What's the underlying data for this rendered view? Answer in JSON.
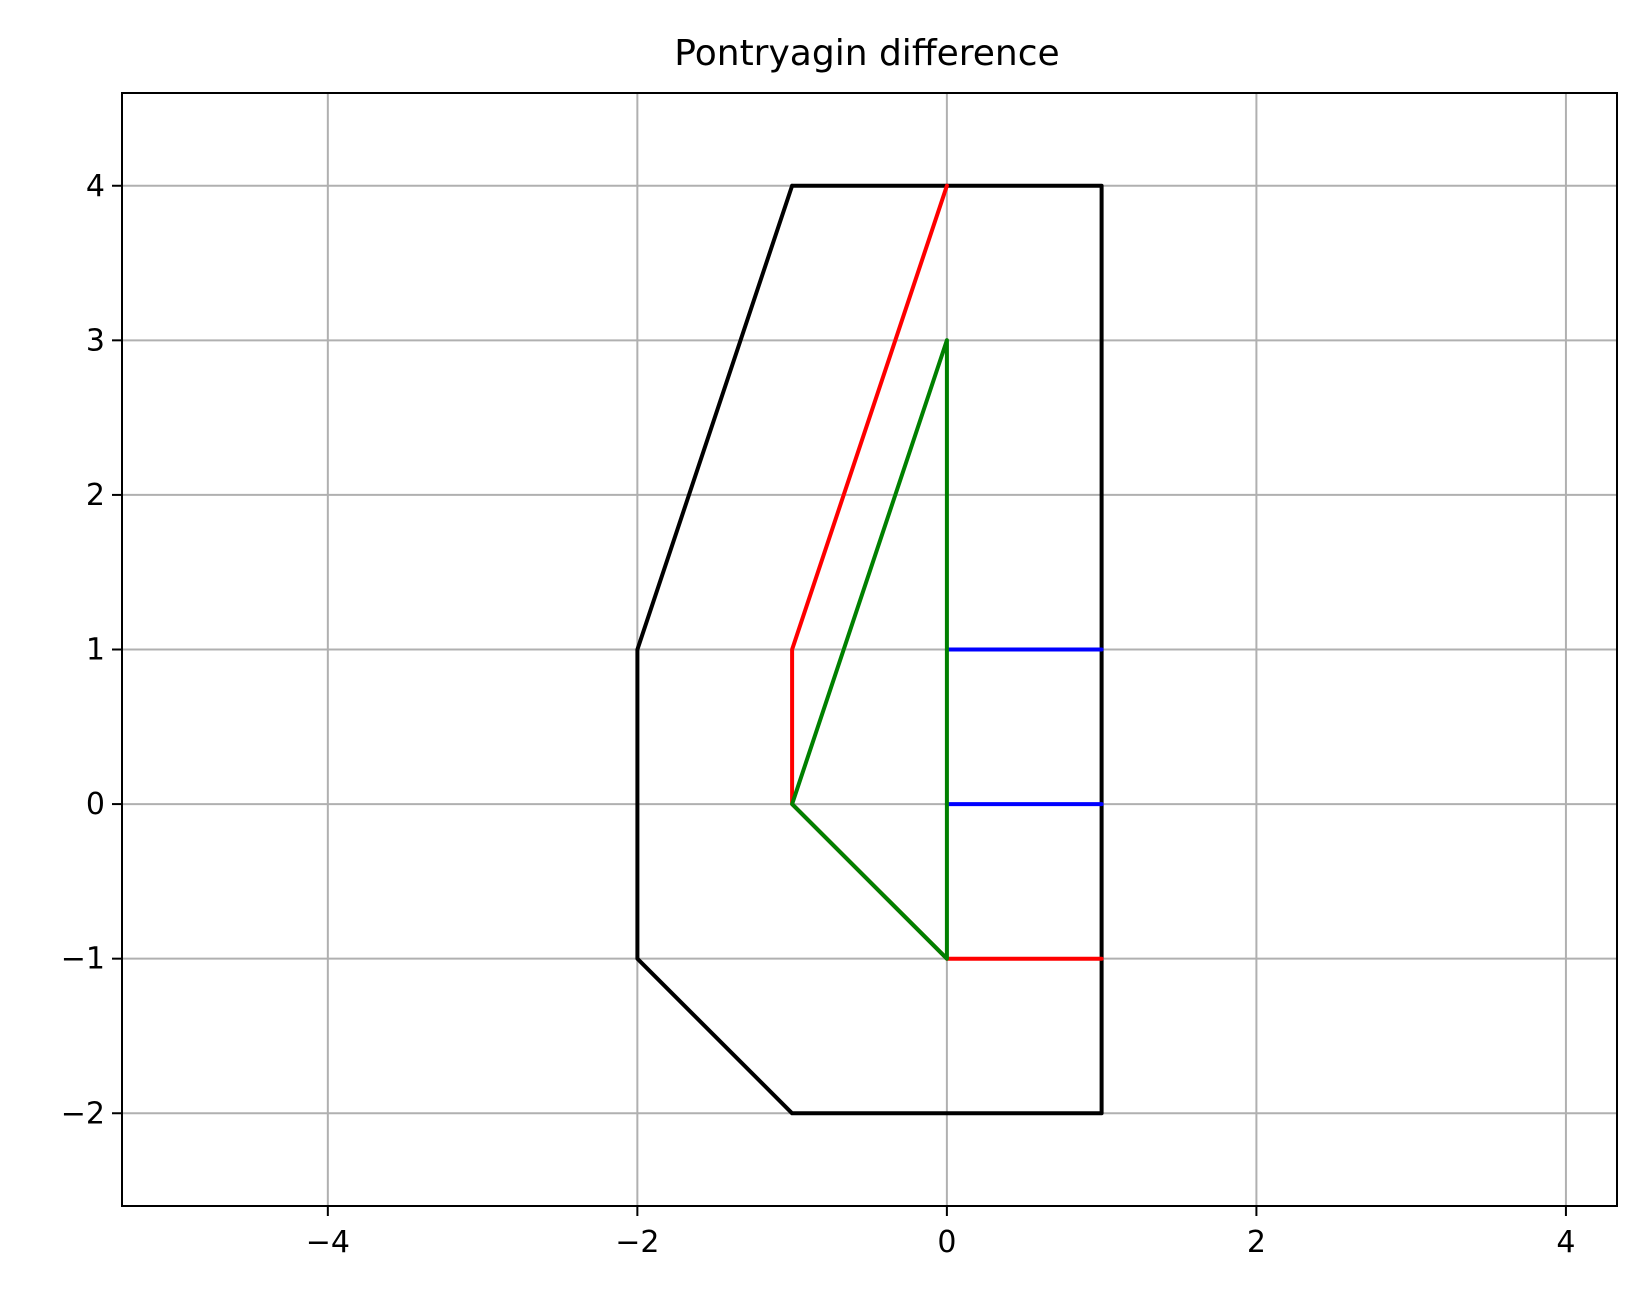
{
  "chart_data": {
    "type": "line",
    "title": "Pontryagin difference",
    "xlabel": "",
    "ylabel": "",
    "xlim": [
      -5.33,
      4.33
    ],
    "ylim": [
      -2.6,
      4.6
    ],
    "grid": true,
    "x_ticks": [
      -4,
      -2,
      0,
      2,
      4
    ],
    "x_tick_labels": [
      "−4",
      "−2",
      "0",
      "2",
      "4"
    ],
    "y_ticks": [
      -2,
      -1,
      0,
      1,
      2,
      3,
      4
    ],
    "y_tick_labels": [
      "−2",
      "−1",
      "0",
      "1",
      "2",
      "3",
      "4"
    ],
    "series": [
      {
        "color": "#000000",
        "points": [
          [
            -1,
            4
          ],
          [
            1,
            4
          ],
          [
            1,
            -2
          ],
          [
            -1,
            -2
          ],
          [
            -2,
            -1
          ],
          [
            -2,
            1
          ],
          [
            -1,
            4
          ]
        ]
      },
      {
        "color": "#ff0000",
        "points": [
          [
            0,
            4
          ],
          [
            -1,
            1
          ],
          [
            -1,
            0
          ],
          [
            0,
            -1
          ],
          [
            1,
            -1
          ]
        ]
      },
      {
        "color": "#0000ff",
        "points": [
          [
            0,
            1
          ],
          [
            1,
            1
          ]
        ]
      },
      {
        "color": "#0000ff",
        "points": [
          [
            0,
            0
          ],
          [
            1,
            0
          ]
        ]
      },
      {
        "color": "#008000",
        "points": [
          [
            0,
            3
          ],
          [
            -1,
            0
          ],
          [
            0,
            -1
          ],
          [
            0,
            3
          ]
        ]
      }
    ]
  }
}
